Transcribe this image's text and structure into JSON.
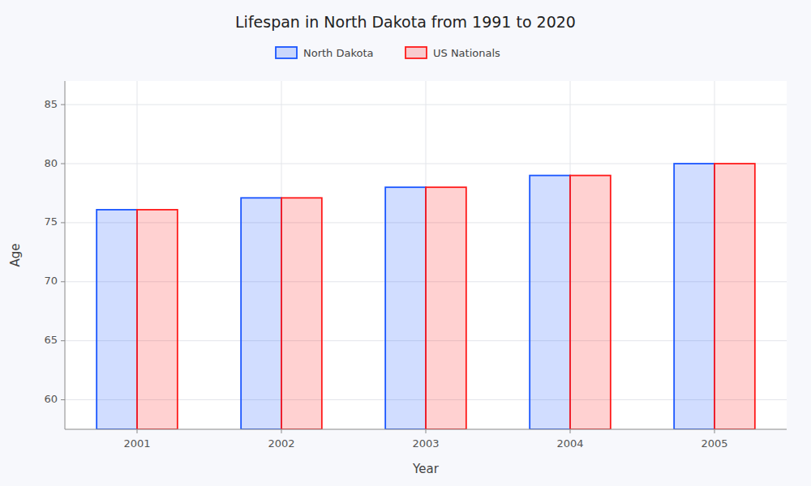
{
  "chart_data": {
    "type": "bar",
    "title": "Lifespan in North Dakota from 1991 to 2020",
    "x_label": "Year",
    "y_label": "Age",
    "categories": [
      "2001",
      "2002",
      "2003",
      "2004",
      "2005"
    ],
    "series": [
      {
        "name": "North Dakota",
        "color": "#1a56ff",
        "values": [
          76.1,
          77.1,
          78.0,
          79.0,
          80.0
        ]
      },
      {
        "name": "US Nationals",
        "color": "#ff1a1a",
        "values": [
          76.1,
          77.1,
          78.0,
          79.0,
          80.0
        ]
      }
    ],
    "ylim": [
      57.5,
      87
    ],
    "yticks": [
      60,
      65,
      70,
      75,
      80,
      85
    ],
    "grid": true,
    "legend": "top"
  }
}
